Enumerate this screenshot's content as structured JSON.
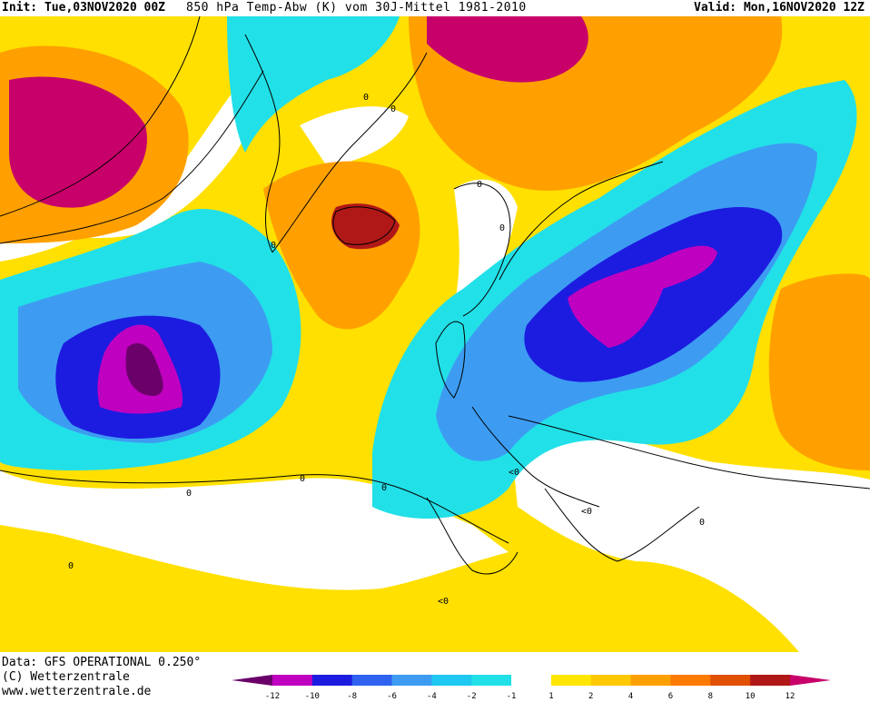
{
  "header": {
    "init": "Init: Tue,03NOV2020 00Z",
    "title": "850 hPa Temp-Abw (K) vom 30J-Mittel 1981-2010",
    "valid": "Valid: Mon,16NOV2020 12Z"
  },
  "footer": {
    "data_source": "Data: GFS OPERATIONAL 0.250°",
    "copyright": "(C) Wetterzentrale",
    "website": "www.wetterzentrale.de"
  },
  "legend": {
    "tick_labels": [
      "-12",
      "-10",
      "-8",
      "-6",
      "-4",
      "-2",
      "-1",
      "1",
      "2",
      "4",
      "6",
      "8",
      "10",
      "12"
    ],
    "colors": [
      "#6b006b",
      "#c000c0",
      "#1c1ce0",
      "#2f62f0",
      "#3d9cf2",
      "#1ec8f0",
      "#22e0e8",
      "#ffffff",
      "#ffe600",
      "#ffc800",
      "#ffa000",
      "#ff7a00",
      "#e05000",
      "#b01818",
      "#c8006a"
    ]
  },
  "map": {
    "contour_labels": [
      "0",
      "0",
      "0",
      "0",
      "0",
      "0",
      "0",
      "0",
      "<0",
      "<0",
      "<0",
      "0",
      "0"
    ],
    "colors": {
      "ocean_warm": "#ffe000",
      "warm_orange": "#ffa000",
      "hot_red": "#b01818",
      "hot_magenta": "#c8006a",
      "cold_cyan": "#22e0e8",
      "cold_lightblue": "#3d9cf2",
      "cold_blue": "#1c1ce0",
      "cold_purple": "#c000c0",
      "cold_darkpurple": "#6b006b",
      "neutral": "#ffffff"
    }
  }
}
